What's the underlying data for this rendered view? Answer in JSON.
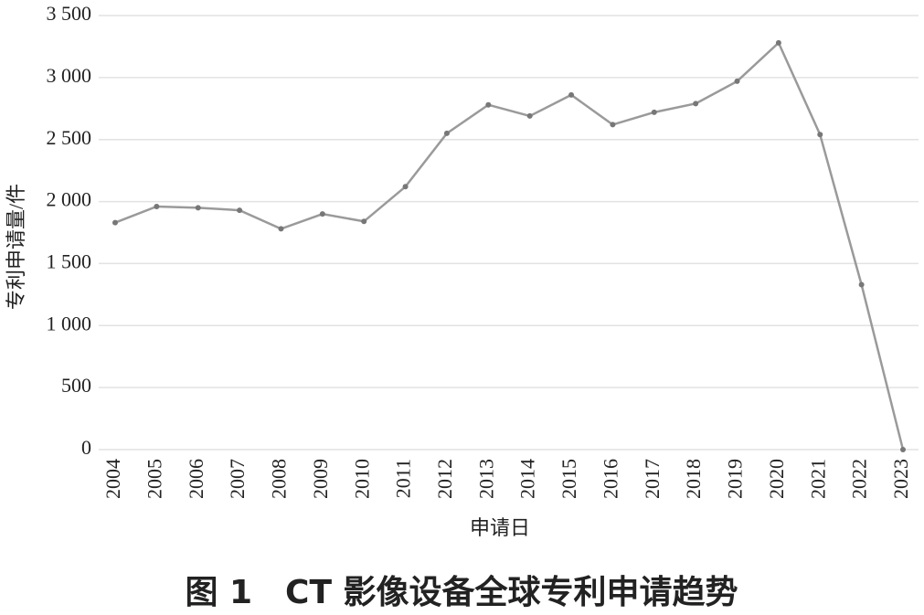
{
  "chart_data": {
    "type": "line",
    "caption": "图 1　CT 影像设备全球专利申请趋势",
    "x_label": "申请日",
    "y_label": "专利申请量/件",
    "categories": [
      "2004",
      "2005",
      "2006",
      "2007",
      "2008",
      "2009",
      "2010",
      "2011",
      "2012",
      "2013",
      "2014",
      "2015",
      "2016",
      "2017",
      "2018",
      "2019",
      "2020",
      "2021",
      "2022",
      "2023"
    ],
    "values": [
      1830,
      1960,
      1950,
      1930,
      1780,
      1900,
      1840,
      2120,
      2550,
      2780,
      2690,
      2860,
      2620,
      2720,
      2790,
      2970,
      3280,
      2540,
      1330,
      0
    ],
    "color": "#9a9a9a",
    "ylim": [
      0,
      3500
    ],
    "yticks": [
      0,
      500,
      {
        "value": 1000,
        "label": "1 000"
      },
      {
        "value": 1500,
        "label": "1 500"
      },
      {
        "value": 2000,
        "label": "2 000"
      },
      {
        "value": 2500,
        "label": "2 500"
      },
      {
        "value": 3000,
        "label": "3 000"
      },
      {
        "value": 3500,
        "label": "3 500"
      }
    ],
    "grid": true
  }
}
